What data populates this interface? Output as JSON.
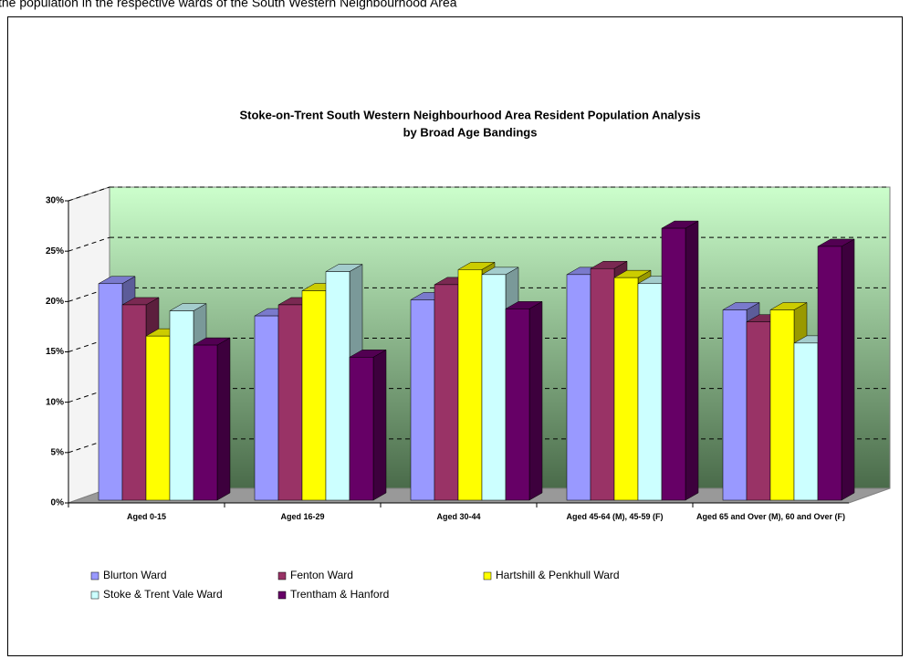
{
  "page_text": "the population in the respective wards of the South Western Neighbourhood Area",
  "chart_data": {
    "type": "bar3d",
    "title": [
      "Stoke-on-Trent South Western Neighbourhood Area Resident Population Analysis",
      "by Broad Age Bandings"
    ],
    "categories": [
      "Aged 0-15",
      "Aged 16-29",
      "Aged 30-44",
      "Aged 45-64 (M), 45-59 (F)",
      "Aged 65 and Over (M), 60 and Over (F)"
    ],
    "series": [
      {
        "name": "Blurton Ward",
        "color": "#9999ff",
        "values": [
          21.5,
          18.3,
          19.9,
          22.4,
          18.9
        ]
      },
      {
        "name": "Fenton Ward",
        "color": "#993366",
        "values": [
          19.4,
          19.4,
          21.4,
          23.0,
          17.7
        ]
      },
      {
        "name": "Hartshill & Penkhull Ward",
        "color": "#ffff00",
        "values": [
          16.3,
          20.8,
          22.9,
          22.1,
          18.9
        ]
      },
      {
        "name": "Stoke & Trent Vale Ward",
        "color": "#ccffff",
        "values": [
          18.8,
          22.7,
          22.4,
          21.5,
          15.6
        ]
      },
      {
        "name": "Trentham & Hanford",
        "color": "#660066",
        "values": [
          15.4,
          14.2,
          19.0,
          27.0,
          25.2
        ]
      }
    ],
    "ylim": [
      0,
      30
    ],
    "yticks": [
      {
        "value": 0,
        "label": "0%"
      },
      {
        "value": 5,
        "label": "5%"
      },
      {
        "value": 10,
        "label": "10%"
      },
      {
        "value": 15,
        "label": "15%"
      },
      {
        "value": 20,
        "label": "20%"
      },
      {
        "value": 25,
        "label": "25%"
      },
      {
        "value": 30,
        "label": "30%"
      }
    ],
    "grid": true
  }
}
